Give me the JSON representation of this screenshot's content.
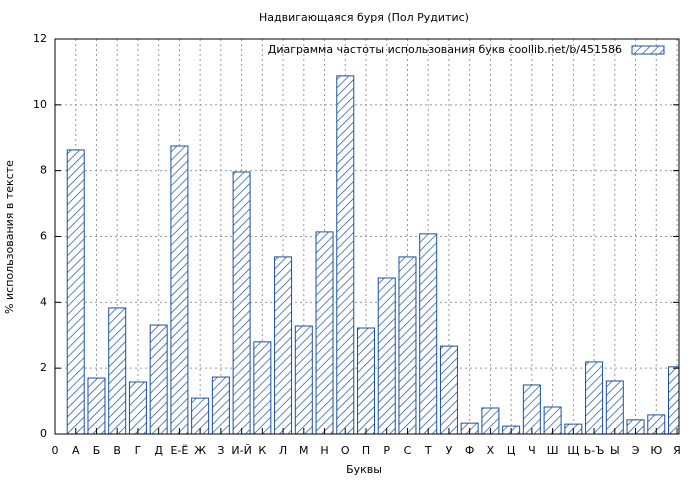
{
  "chart_data": {
    "type": "bar",
    "title": "Надвигающаяся буря (Пол Рудитис)",
    "x_label": "Буквы",
    "y_label": "% использования в тексте",
    "categories": [
      "0",
      "А",
      "Б",
      "В",
      "Г",
      "Д",
      "Е-Ё",
      "Ж",
      "З",
      "И-Й",
      "К",
      "Л",
      "М",
      "Н",
      "О",
      "П",
      "Р",
      "С",
      "Т",
      "У",
      "Ф",
      "Х",
      "Ц",
      "Ч",
      "Ш",
      "Щ",
      "Ь-Ъ",
      "Ы",
      "Э",
      "Ю",
      "Я"
    ],
    "series": [
      {
        "name": "Диаграмма частоты использования букв  coollib.net/b/451586",
        "color": "#1a4fa0",
        "values": [
          null,
          8.63,
          1.7,
          3.83,
          1.58,
          3.31,
          8.75,
          1.09,
          1.73,
          7.96,
          2.8,
          5.38,
          3.28,
          6.14,
          10.88,
          3.22,
          4.74,
          5.38,
          6.08,
          2.67,
          0.33,
          0.79,
          0.24,
          1.49,
          0.82,
          0.3,
          2.19,
          1.61,
          0.43,
          0.58,
          2.04
        ]
      }
    ],
    "ylim": [
      0,
      12
    ],
    "yticks": [
      0,
      2,
      4,
      6,
      8,
      10,
      12
    ],
    "grid": true,
    "legend": "top-right"
  }
}
